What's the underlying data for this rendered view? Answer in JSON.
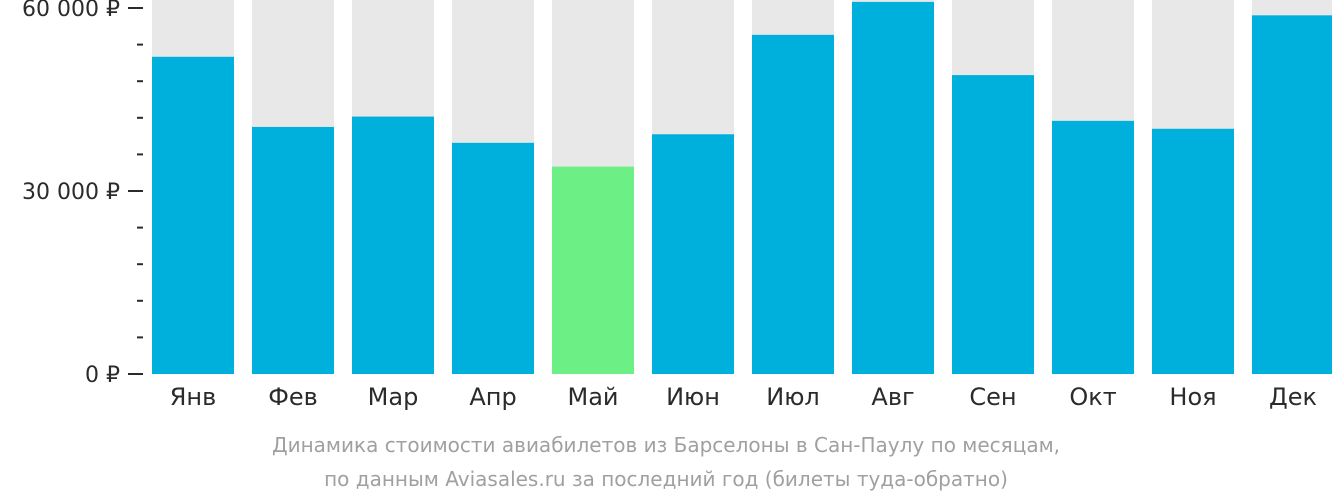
{
  "chart_data": {
    "type": "bar",
    "categories": [
      "Янв",
      "Фев",
      "Мар",
      "Апр",
      "Май",
      "Июн",
      "Июл",
      "Авг",
      "Сен",
      "Окт",
      "Ноя",
      "Дек"
    ],
    "values": [
      52000,
      40500,
      42200,
      37900,
      34000,
      39300,
      55600,
      61000,
      49000,
      41500,
      40200,
      58800
    ],
    "highlight_index": 4,
    "ylim": [
      0,
      60000
    ],
    "y_ticks": [
      {
        "value": 0,
        "label": "0 ₽"
      },
      {
        "value": 30000,
        "label": "30 000 ₽"
      },
      {
        "value": 60000,
        "label": "60 000 ₽"
      }
    ],
    "minor_tick_step": 6000,
    "colors": {
      "bar": "#00b0dc",
      "highlight": "#6cf086",
      "track": "#e8e8e8",
      "axis": "#2b2b2b"
    }
  },
  "caption": {
    "line1": "Динамика стоимости авиабилетов из Барселоны в Сан-Паулу по месяцам,",
    "line2": "по данным Aviasales.ru за последний год (билеты туда-обратно)"
  }
}
